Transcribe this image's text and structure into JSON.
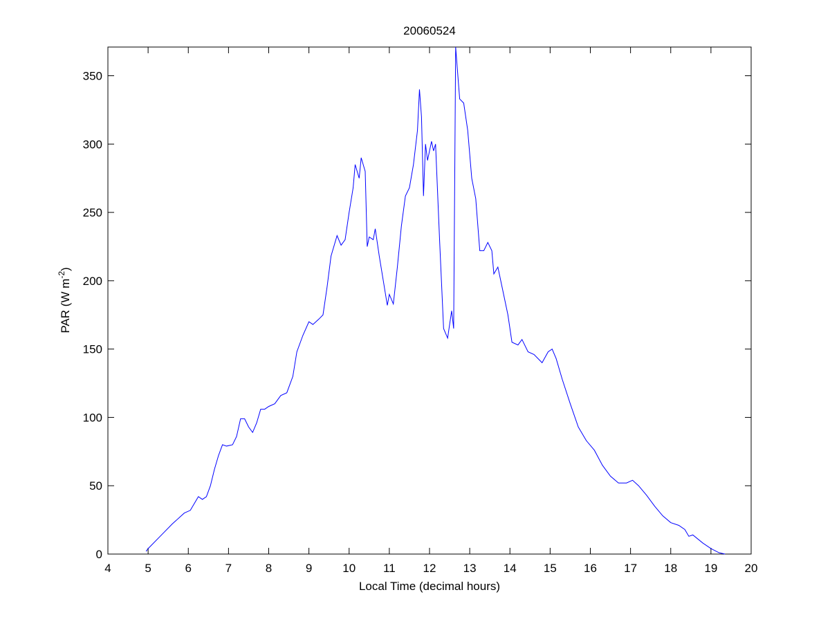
{
  "chart_data": {
    "type": "line",
    "title": "20060524",
    "x_label": "Local Time (decimal hours)",
    "y_label": [
      "PAR (W m",
      "-2",
      ")"
    ],
    "xlim": [
      4,
      20
    ],
    "xticks": [
      4,
      5,
      6,
      7,
      8,
      9,
      10,
      11,
      12,
      13,
      14,
      15,
      16,
      17,
      18,
      19,
      20
    ],
    "ylim": [
      0,
      371
    ],
    "yticks": [
      0,
      50,
      100,
      150,
      200,
      250,
      300,
      350
    ],
    "x": [
      4.95,
      5.0,
      5.3,
      5.6,
      5.9,
      6.05,
      6.15,
      6.25,
      6.35,
      6.45,
      6.55,
      6.65,
      6.75,
      6.85,
      6.95,
      7.1,
      7.2,
      7.3,
      7.4,
      7.5,
      7.6,
      7.7,
      7.8,
      7.9,
      8.0,
      8.15,
      8.3,
      8.45,
      8.6,
      8.7,
      8.85,
      9.0,
      9.1,
      9.25,
      9.35,
      9.45,
      9.55,
      9.7,
      9.8,
      9.9,
      10.0,
      10.1,
      10.15,
      10.25,
      10.3,
      10.4,
      10.45,
      10.5,
      10.6,
      10.65,
      10.75,
      10.85,
      10.95,
      11.0,
      11.1,
      11.2,
      11.3,
      11.4,
      11.5,
      11.6,
      11.7,
      11.75,
      11.8,
      11.85,
      11.9,
      11.95,
      12.05,
      12.1,
      12.15,
      12.25,
      12.35,
      12.45,
      12.55,
      12.6,
      12.65,
      12.75,
      12.85,
      12.95,
      13.05,
      13.15,
      13.25,
      13.35,
      13.45,
      13.55,
      13.6,
      13.7,
      13.8,
      13.95,
      14.05,
      14.2,
      14.3,
      14.45,
      14.6,
      14.8,
      14.95,
      15.05,
      15.15,
      15.3,
      15.5,
      15.7,
      15.9,
      16.1,
      16.3,
      16.5,
      16.7,
      16.9,
      17.05,
      17.2,
      17.4,
      17.6,
      17.8,
      18.0,
      18.2,
      18.35,
      18.45,
      18.55,
      18.8,
      19.0,
      19.2,
      19.35
    ],
    "series": [
      {
        "color": "#0000ff",
        "values": [
          2,
          4,
          13,
          22,
          30,
          32,
          37,
          42,
          40,
          42,
          50,
          62,
          72,
          80,
          79,
          80,
          86,
          99,
          99,
          93,
          89,
          96,
          106,
          106,
          108,
          110,
          116,
          118,
          130,
          148,
          160,
          170,
          168,
          172,
          175,
          195,
          218,
          233,
          226,
          230,
          250,
          268,
          285,
          275,
          290,
          280,
          225,
          232,
          230,
          238,
          218,
          200,
          182,
          190,
          183,
          210,
          240,
          262,
          268,
          285,
          310,
          340,
          320,
          262,
          300,
          288,
          302,
          295,
          300,
          230,
          165,
          158,
          178,
          165,
          371,
          333,
          330,
          310,
          275,
          260,
          222,
          222,
          228,
          222,
          205,
          210,
          196,
          175,
          155,
          153,
          157,
          148,
          146,
          140,
          148,
          150,
          143,
          128,
          110,
          93,
          83,
          76,
          65,
          57,
          52,
          52,
          54,
          50,
          43,
          35,
          28,
          23,
          21,
          18,
          13,
          14,
          8,
          4,
          1,
          0
        ]
      }
    ]
  }
}
